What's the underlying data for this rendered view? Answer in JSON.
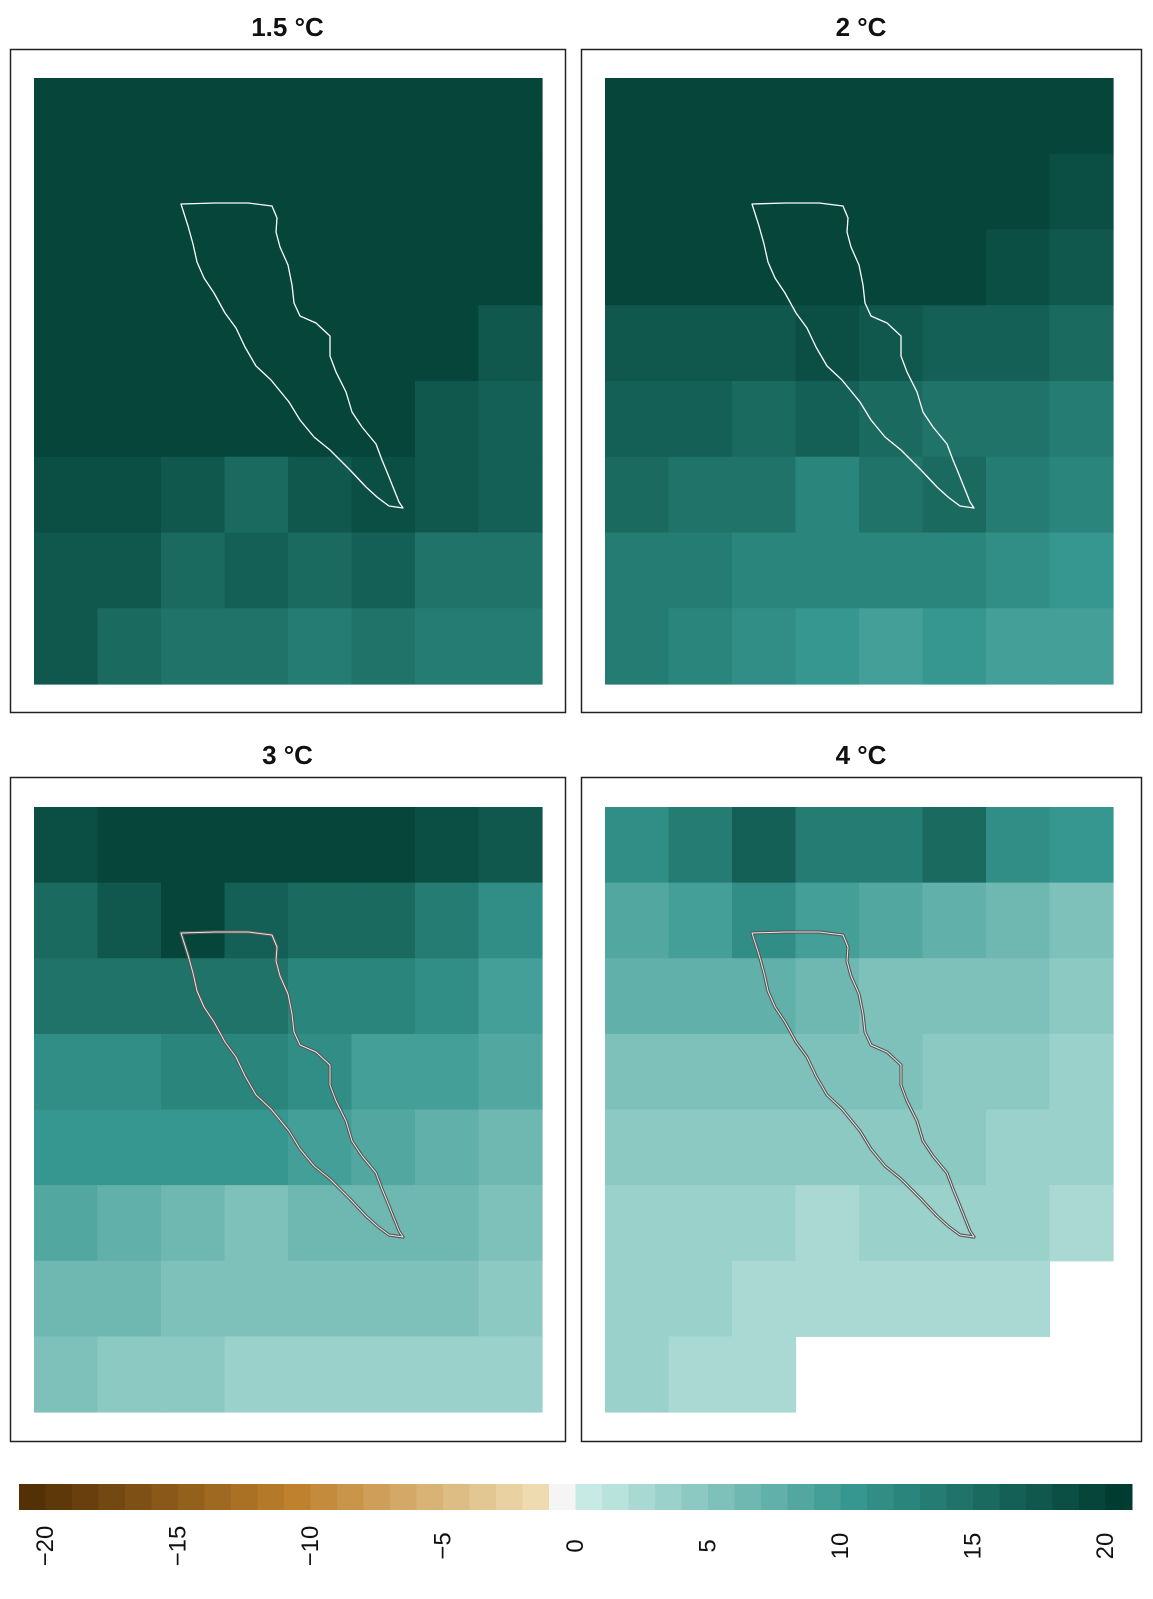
{
  "chart_data": [
    {
      "type": "heatmap",
      "title": "1.5 °C",
      "ncols": 8,
      "nrows": 8,
      "values": [
        [
          20,
          20,
          20,
          20,
          20,
          20,
          20,
          20
        ],
        [
          20,
          20,
          20,
          20,
          20,
          20,
          20,
          20
        ],
        [
          20,
          20,
          20,
          20,
          20,
          20,
          20,
          20
        ],
        [
          20,
          20,
          20,
          20,
          20,
          20,
          20,
          18
        ],
        [
          20,
          20,
          20,
          20,
          20,
          20,
          18,
          17
        ],
        [
          19,
          19,
          18,
          16,
          18,
          19,
          18,
          17
        ],
        [
          18,
          18,
          16,
          17,
          16,
          17,
          15,
          15
        ],
        [
          18,
          16,
          15,
          15,
          14,
          15,
          14,
          14
        ]
      ],
      "outline_color": "#ffffff"
    },
    {
      "type": "heatmap",
      "title": "2 °C",
      "ncols": 8,
      "nrows": 8,
      "values": [
        [
          20,
          20,
          20,
          20,
          20,
          20,
          20,
          20
        ],
        [
          20,
          20,
          20,
          20,
          20,
          20,
          20,
          19
        ],
        [
          20,
          20,
          20,
          20,
          20,
          20,
          19,
          18
        ],
        [
          18,
          18,
          18,
          19,
          18,
          17,
          17,
          16
        ],
        [
          17,
          17,
          16,
          17,
          16,
          15,
          15,
          14
        ],
        [
          16,
          15,
          15,
          13,
          15,
          16,
          14,
          13
        ],
        [
          14,
          14,
          13,
          13,
          13,
          13,
          12,
          11
        ],
        [
          14,
          13,
          12,
          11,
          10,
          11,
          10,
          10
        ]
      ],
      "outline_color": "#ffffff"
    },
    {
      "type": "heatmap",
      "title": "3 °C",
      "ncols": 8,
      "nrows": 8,
      "values": [
        [
          19,
          20,
          20,
          20,
          20,
          20,
          19,
          18
        ],
        [
          16,
          18,
          20,
          17,
          16,
          16,
          14,
          12
        ],
        [
          15,
          15,
          15,
          15,
          13,
          13,
          12,
          10
        ],
        [
          12,
          12,
          13,
          13,
          12,
          10,
          10,
          9
        ],
        [
          11,
          11,
          11,
          11,
          10,
          9,
          8,
          7
        ],
        [
          9,
          8,
          7,
          6,
          7,
          7,
          7,
          6
        ],
        [
          7,
          7,
          6,
          6,
          6,
          6,
          6,
          5
        ],
        [
          6,
          5,
          5,
          4,
          4,
          4,
          4,
          4
        ]
      ],
      "outline_color": "#555555"
    },
    {
      "type": "heatmap",
      "title": "4 °C",
      "ncols": 8,
      "nrows": 8,
      "values": [
        [
          12,
          14,
          17,
          14,
          14,
          16,
          12,
          11
        ],
        [
          9,
          10,
          12,
          10,
          9,
          8,
          7,
          6
        ],
        [
          8,
          8,
          8,
          7,
          6,
          6,
          6,
          5
        ],
        [
          6,
          6,
          6,
          6,
          6,
          5,
          5,
          4
        ],
        [
          5,
          5,
          5,
          5,
          5,
          5,
          4,
          4
        ],
        [
          4,
          4,
          4,
          3,
          4,
          4,
          4,
          3
        ],
        [
          4,
          4,
          3,
          3,
          3,
          3,
          3,
          null
        ],
        [
          4,
          3,
          3,
          null,
          null,
          null,
          null,
          null
        ]
      ],
      "outline_color": "#555555"
    }
  ],
  "colorbar": {
    "min": -21,
    "max": 21,
    "step": 1,
    "ticks": [
      "−20",
      "−15",
      "−10",
      "−5",
      "0",
      "5",
      "10",
      "15",
      "20"
    ],
    "tick_values": [
      -20,
      -15,
      -10,
      -5,
      0,
      5,
      10,
      15,
      20
    ],
    "colors": {
      "neg_dark": "#543005",
      "neg_mid": "#bf812d",
      "neg_light": "#f3e5bf",
      "zero": "#f5f5f5",
      "pos_light": "#c7eae5",
      "pos_mid": "#35978f",
      "pos_dark": "#003c30"
    }
  }
}
